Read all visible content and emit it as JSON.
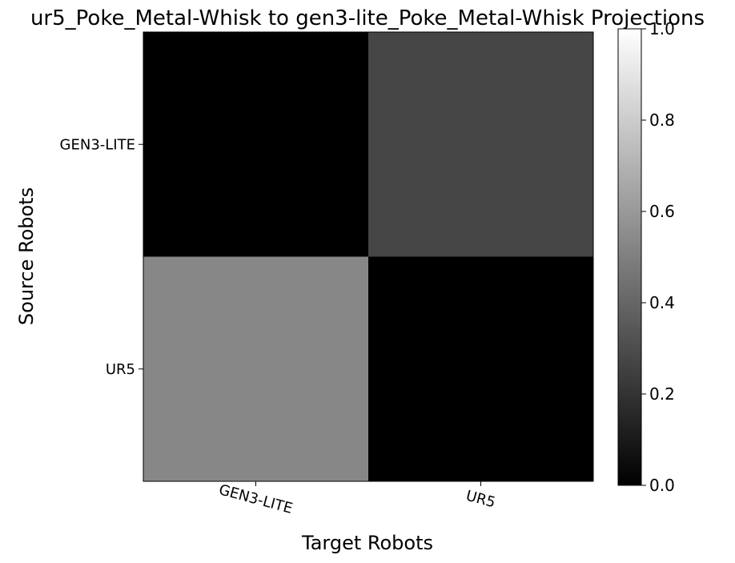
{
  "chart_data": {
    "type": "heatmap",
    "title": "ur5_Poke_Metal-Whisk to gen3-lite_Poke_Metal-Whisk Projections",
    "xlabel": "Target Robots",
    "ylabel": "Source Robots",
    "x_categories": [
      "GEN3-LITE",
      "UR5"
    ],
    "y_categories": [
      "GEN3-LITE",
      "UR5"
    ],
    "values": [
      [
        0.0,
        0.27
      ],
      [
        0.53,
        0.0
      ]
    ],
    "colormap": "gray",
    "vmin": 0.0,
    "vmax": 1.0,
    "colorbar_ticks": [
      "0.0",
      "0.2",
      "0.4",
      "0.6",
      "0.8",
      "1.0"
    ],
    "grid": false
  }
}
